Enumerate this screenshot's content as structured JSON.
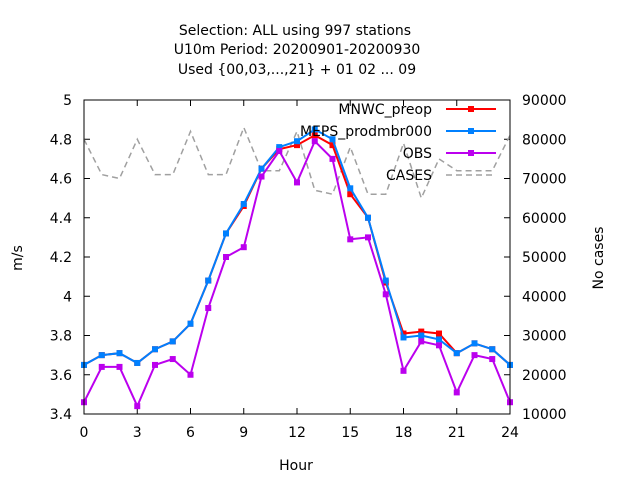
{
  "chart_data": {
    "type": "line",
    "title_lines": [
      "Selection: ALL using   997 stations",
      "U10m   Period: 20200901-20200930",
      "Used {00,03,...,21} + 01 02 ... 09"
    ],
    "xlabel": "Hour",
    "ylabel": "m/s",
    "y2label": "No cases",
    "xlim": [
      0,
      24
    ],
    "ylim": [
      3.4,
      5.0
    ],
    "y2lim": [
      10000,
      90000
    ],
    "x_ticks": [
      "0",
      "3",
      "6",
      "9",
      "12",
      "15",
      "18",
      "21",
      "24"
    ],
    "y_ticks": [
      "3.4",
      "3.6",
      "3.8",
      "4",
      "4.2",
      "4.4",
      "4.6",
      "4.8",
      "5"
    ],
    "y2_ticks": [
      "10000",
      "20000",
      "30000",
      "40000",
      "50000",
      "60000",
      "70000",
      "80000",
      "90000"
    ],
    "legend_position": "top-right",
    "x": [
      0,
      1,
      2,
      3,
      4,
      5,
      6,
      7,
      8,
      9,
      10,
      11,
      12,
      13,
      14,
      15,
      16,
      17,
      18,
      19,
      20,
      21,
      22,
      23,
      24
    ],
    "series": [
      {
        "name": "MNWC_preop",
        "color": "#ff0000",
        "marker": "square",
        "axis": "y",
        "values": [
          3.65,
          3.7,
          3.71,
          3.66,
          3.73,
          3.77,
          3.86,
          4.08,
          4.32,
          4.46,
          4.65,
          4.75,
          4.77,
          4.82,
          4.77,
          4.52,
          4.4,
          4.07,
          3.81,
          3.82,
          3.81,
          3.71,
          3.76,
          3.73,
          3.65
        ]
      },
      {
        "name": "MEPS_prodmbr000",
        "color": "#0080ff",
        "marker": "square",
        "axis": "y",
        "values": [
          3.65,
          3.7,
          3.71,
          3.66,
          3.73,
          3.77,
          3.86,
          4.08,
          4.32,
          4.47,
          4.65,
          4.76,
          4.79,
          4.85,
          4.8,
          4.55,
          4.4,
          4.08,
          3.79,
          3.8,
          3.78,
          3.71,
          3.76,
          3.73,
          3.65
        ]
      },
      {
        "name": "OBS",
        "color": "#bb00ee",
        "marker": "square",
        "axis": "y",
        "values": [
          3.46,
          3.64,
          3.64,
          3.44,
          3.65,
          3.68,
          3.6,
          3.94,
          4.2,
          4.25,
          4.61,
          4.74,
          4.58,
          4.79,
          4.7,
          4.29,
          4.3,
          4.01,
          3.62,
          3.77,
          3.75,
          3.51,
          3.7,
          3.68,
          3.46
        ]
      },
      {
        "name": "CASES",
        "color": "#a0a0a0",
        "marker": "none",
        "dashed": true,
        "axis": "y2",
        "x": [
          0,
          1,
          2,
          3,
          4,
          5,
          6,
          7,
          8,
          9,
          10,
          11,
          12,
          13,
          14,
          15,
          16,
          17,
          18,
          19,
          20,
          21,
          22,
          23,
          24
        ],
        "values": [
          80000,
          71000,
          70000,
          80000,
          71000,
          71000,
          82000,
          71000,
          71000,
          83000,
          72000,
          72000,
          82000,
          67000,
          66000,
          78000,
          66000,
          66000,
          79000,
          65000,
          75000,
          72000,
          72000,
          72000,
          81000
        ]
      }
    ]
  }
}
